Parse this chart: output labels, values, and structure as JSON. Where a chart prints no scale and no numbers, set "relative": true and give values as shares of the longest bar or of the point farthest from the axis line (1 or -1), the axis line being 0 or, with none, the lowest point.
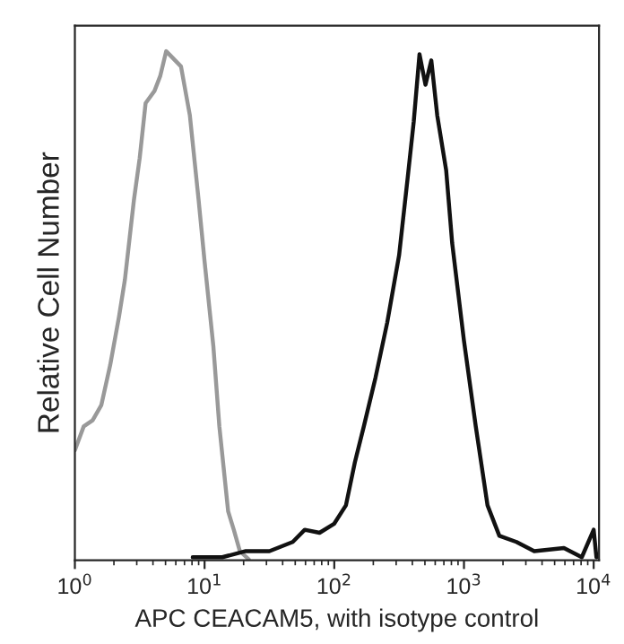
{
  "chart_data": {
    "type": "line",
    "relative": true,
    "xlabel": "APC CEACAM5, with isotype control",
    "ylabel": "Relative Cell Number",
    "log": "x",
    "xlim": [
      1,
      11000
    ],
    "xticks": [
      {
        "value": 1,
        "label": "10$^{0}$"
      },
      {
        "value": 10,
        "label": "10$^{1}$"
      },
      {
        "value": 100,
        "label": "10$^{2}$"
      },
      {
        "value": 1000,
        "label": "10$^{3}$"
      },
      {
        "value": 10000,
        "label": "10$^{4}$"
      }
    ],
    "grid": false,
    "legend": false,
    "marker": "none",
    "line_style": "solid",
    "series": [
      {
        "color": "#999999",
        "x": [
          1,
          1.17,
          1.37,
          1.6,
          1.87,
          2.19,
          2.43,
          2.85,
          3.16,
          3.51,
          4.11,
          4.56,
          5.06,
          5.62,
          6.58,
          7.7,
          9.0,
          10,
          11.7,
          13.0,
          15.2,
          16.8,
          18.7,
          21.9
        ],
        "values": [
          0.216,
          0.263,
          0.275,
          0.305,
          0.383,
          0.479,
          0.551,
          0.707,
          0.79,
          0.898,
          0.922,
          0.952,
          1.0,
          0.988,
          0.97,
          0.874,
          0.707,
          0.587,
          0.419,
          0.263,
          0.096,
          0.06,
          0.018,
          0.002
        ]
      },
      {
        "color": "#111111",
        "x": [
          8.1,
          13.7,
          20.8,
          31.6,
          47.8,
          59.2,
          77.0,
          100,
          123,
          144,
          169,
          208,
          256,
          316,
          369,
          410,
          454,
          505,
          560,
          622,
          729,
          811,
          1000,
          1233,
          1519,
          1874,
          2540,
          3480,
          5900,
          8100,
          10000,
          10500
        ],
        "values": [
          0.006,
          0.006,
          0.018,
          0.018,
          0.036,
          0.06,
          0.054,
          0.072,
          0.108,
          0.192,
          0.263,
          0.359,
          0.467,
          0.599,
          0.754,
          0.862,
          0.994,
          0.934,
          0.982,
          0.874,
          0.766,
          0.623,
          0.431,
          0.263,
          0.108,
          0.048,
          0.036,
          0.018,
          0.024,
          0.006,
          0.06,
          0.006
        ]
      }
    ]
  }
}
